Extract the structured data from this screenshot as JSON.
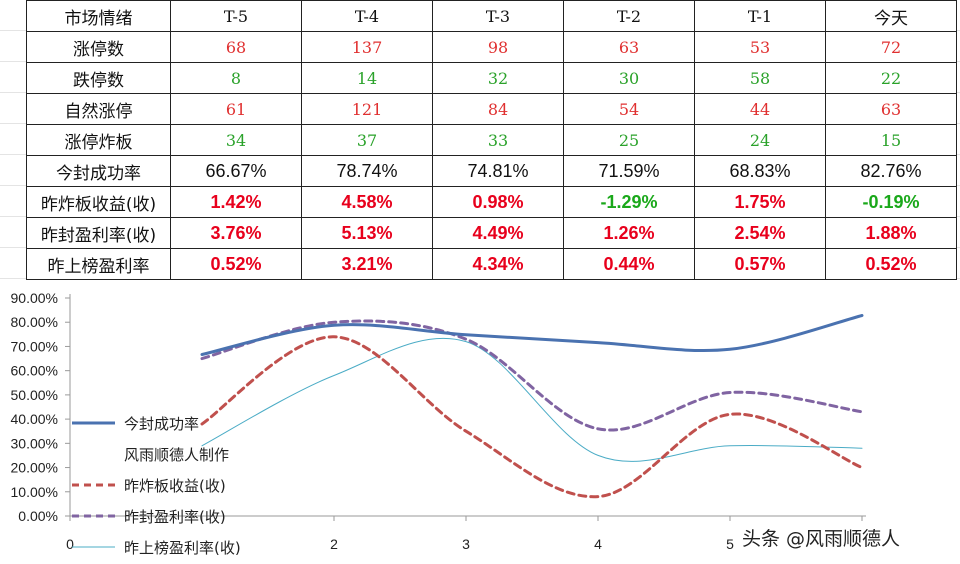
{
  "table": {
    "header": [
      "市场情绪",
      "T-5",
      "T-4",
      "T-3",
      "T-2",
      "T-1",
      "今天"
    ],
    "rows": [
      {
        "label": "涨停数",
        "values": [
          "68",
          "137",
          "98",
          "63",
          "53",
          "72"
        ],
        "style": "serif",
        "colors": [
          "#e03030",
          "#e03030",
          "#e03030",
          "#e03030",
          "#e03030",
          "#e03030"
        ]
      },
      {
        "label": "跌停数",
        "values": [
          "8",
          "14",
          "32",
          "30",
          "58",
          "22"
        ],
        "style": "serif",
        "colors": [
          "#2aa22a",
          "#2aa22a",
          "#2aa22a",
          "#2aa22a",
          "#2aa22a",
          "#2aa22a"
        ]
      },
      {
        "label": "自然涨停",
        "values": [
          "61",
          "121",
          "84",
          "54",
          "44",
          "63"
        ],
        "style": "serif",
        "colors": [
          "#e03030",
          "#e03030",
          "#e03030",
          "#e03030",
          "#e03030",
          "#e03030"
        ]
      },
      {
        "label": "涨停炸板",
        "values": [
          "34",
          "37",
          "33",
          "25",
          "24",
          "15"
        ],
        "style": "serif",
        "colors": [
          "#2aa22a",
          "#2aa22a",
          "#2aa22a",
          "#2aa22a",
          "#2aa22a",
          "#2aa22a"
        ]
      },
      {
        "label": "今封成功率",
        "values": [
          "66.67%",
          "78.74%",
          "74.81%",
          "71.59%",
          "68.83%",
          "82.76%"
        ],
        "style": "sans",
        "colors": [
          "#111111",
          "#111111",
          "#111111",
          "#111111",
          "#111111",
          "#111111"
        ]
      },
      {
        "label": "昨炸板收益(收)",
        "values": [
          "1.42%",
          "4.58%",
          "0.98%",
          "-1.29%",
          "1.75%",
          "-0.19%"
        ],
        "style": "bold",
        "colors": [
          "#e8001c",
          "#e8001c",
          "#e8001c",
          "#1aa81a",
          "#e8001c",
          "#1aa81a"
        ]
      },
      {
        "label": "昨封盈利率(收)",
        "values": [
          "3.76%",
          "5.13%",
          "4.49%",
          "1.26%",
          "2.54%",
          "1.88%"
        ],
        "style": "bold",
        "colors": [
          "#e8001c",
          "#e8001c",
          "#e8001c",
          "#e8001c",
          "#e8001c",
          "#e8001c"
        ]
      },
      {
        "label": "昨上榜盈利率",
        "values": [
          "0.52%",
          "3.21%",
          "4.34%",
          "0.44%",
          "0.57%",
          "0.52%"
        ],
        "style": "bold",
        "colors": [
          "#e8001c",
          "#e8001c",
          "#e8001c",
          "#e8001c",
          "#e8001c",
          "#e8001c"
        ]
      }
    ]
  },
  "chart_data": {
    "type": "line",
    "smooth": true,
    "y_tick_labels": [
      "0.00%",
      "10.00%",
      "20.00%",
      "30.00%",
      "40.00%",
      "50.00%",
      "60.00%",
      "70.00%",
      "80.00%",
      "90.00%"
    ],
    "ylim": [
      0,
      90
    ],
    "x_tick_labels": [
      "0",
      "2",
      "3",
      "4",
      "5"
    ],
    "x_ticks": [
      0,
      2,
      3,
      4,
      5
    ],
    "xlim": [
      0,
      6
    ],
    "grid": false,
    "legend_position": "left",
    "series": [
      {
        "name": "今封成功率",
        "x": [
          1,
          2,
          3,
          4,
          5,
          6
        ],
        "values": [
          66.67,
          78.74,
          74.81,
          71.59,
          68.83,
          82.76
        ],
        "color": "#4a72b0",
        "dash": "solid",
        "width": 3
      },
      {
        "name": "昨炸板收益(收)",
        "x": [
          1,
          2,
          3,
          4,
          5,
          6
        ],
        "values": [
          38,
          74,
          35,
          8,
          42,
          20
        ],
        "color": "#c0504d",
        "dash": "dashed",
        "width": 3
      },
      {
        "name": "昨封盈利率(收)",
        "x": [
          1,
          2,
          3,
          4,
          5,
          6
        ],
        "values": [
          65,
          80,
          73,
          36,
          51,
          43
        ],
        "color": "#8064a2",
        "dash": "dashed",
        "width": 3
      },
      {
        "name": "昨上榜盈利率(收)",
        "x": [
          1,
          2,
          3,
          4,
          5,
          6
        ],
        "values": [
          29,
          58,
          72,
          25,
          29,
          28
        ],
        "color": "#4bacc6",
        "dash": "solid",
        "width": 1
      }
    ],
    "legend_extra_text": "风雨顺德人制作"
  },
  "watermark": "头条 @风雨顺德人"
}
